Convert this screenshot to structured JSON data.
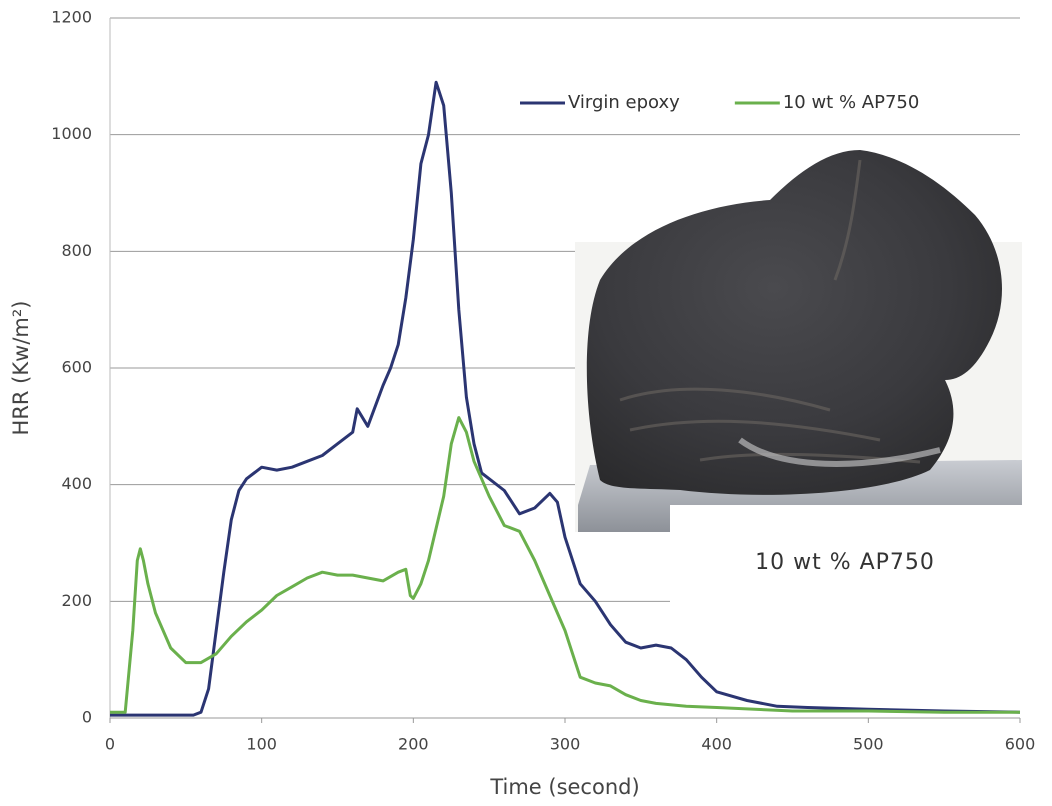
{
  "chart_data": {
    "type": "line",
    "x_label": "Time (second)",
    "y_label": "HRR (Kw/m²)",
    "xlim": [
      0,
      600
    ],
    "ylim": [
      0,
      1200
    ],
    "xticks": [
      0,
      100,
      200,
      300,
      400,
      500,
      600
    ],
    "yticks": [
      0,
      200,
      400,
      600,
      800,
      1000,
      1200
    ],
    "grid": true,
    "legend": "upper right",
    "annotation": "10 wt % AP750",
    "series": [
      {
        "name": "Virgin epoxy",
        "color": "#2b3572",
        "x": [
          0,
          10,
          20,
          30,
          40,
          50,
          55,
          60,
          65,
          70,
          75,
          80,
          85,
          90,
          95,
          100,
          110,
          120,
          130,
          140,
          150,
          160,
          163,
          170,
          180,
          185,
          190,
          195,
          200,
          205,
          210,
          215,
          220,
          225,
          230,
          235,
          240,
          245,
          250,
          260,
          270,
          280,
          290,
          295,
          300,
          310,
          320,
          330,
          340,
          350,
          360,
          370,
          380,
          390,
          400,
          420,
          440,
          460,
          500,
          550,
          600
        ],
        "values": [
          5,
          5,
          5,
          5,
          5,
          5,
          5,
          10,
          50,
          150,
          250,
          340,
          390,
          410,
          420,
          430,
          425,
          430,
          440,
          450,
          470,
          490,
          530,
          500,
          570,
          600,
          640,
          720,
          820,
          950,
          1000,
          1090,
          1050,
          900,
          700,
          550,
          470,
          420,
          410,
          390,
          350,
          360,
          385,
          370,
          310,
          230,
          200,
          160,
          130,
          120,
          125,
          120,
          100,
          70,
          45,
          30,
          20,
          18,
          15,
          12,
          10
        ]
      },
      {
        "name": "10 wt % AP750",
        "color": "#6ab04c",
        "x": [
          0,
          10,
          15,
          18,
          20,
          22,
          25,
          30,
          40,
          50,
          60,
          70,
          80,
          90,
          100,
          110,
          120,
          130,
          140,
          150,
          160,
          170,
          180,
          190,
          195,
          198,
          200,
          205,
          210,
          220,
          225,
          230,
          235,
          240,
          250,
          260,
          270,
          280,
          290,
          300,
          310,
          320,
          330,
          340,
          350,
          360,
          380,
          400,
          450,
          500,
          550,
          600
        ],
        "values": [
          10,
          10,
          150,
          270,
          290,
          270,
          230,
          180,
          120,
          95,
          95,
          110,
          140,
          165,
          185,
          210,
          225,
          240,
          250,
          245,
          245,
          240,
          235,
          250,
          255,
          210,
          205,
          230,
          270,
          380,
          470,
          515,
          490,
          440,
          380,
          330,
          320,
          270,
          210,
          150,
          70,
          60,
          55,
          40,
          30,
          25,
          20,
          18,
          12,
          12,
          10,
          10
        ]
      }
    ]
  }
}
